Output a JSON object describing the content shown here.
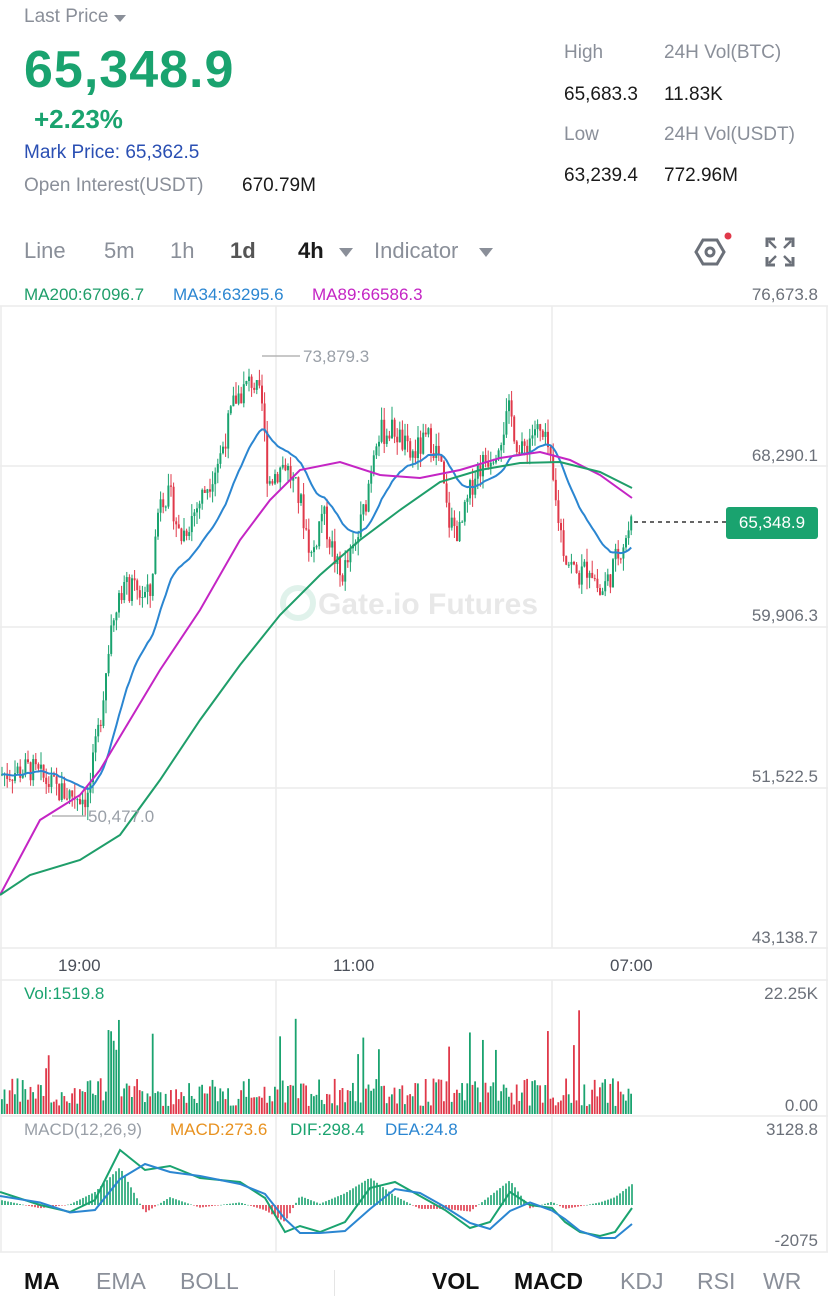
{
  "header": {
    "last_price_label": "Last Price",
    "price": "65,348.9",
    "change": "+2.23%",
    "mark_price": "Mark Price: 65,362.5",
    "open_interest_label": "Open Interest(USDT)",
    "open_interest_value": "670.79M"
  },
  "stats": {
    "high_label": "High",
    "high_value": "65,683.3",
    "low_label": "Low",
    "low_value": "63,239.4",
    "vol_btc_label": "24H Vol(BTC)",
    "vol_btc_value": "11.83K",
    "vol_usdt_label": "24H Vol(USDT)",
    "vol_usdt_value": "772.96M"
  },
  "timeframes": {
    "line": "Line",
    "m5": "5m",
    "h1": "1h",
    "d1": "1d",
    "h4": "4h",
    "indicator": "Indicator"
  },
  "ma_legend": {
    "ma200": "MA200:67096.7",
    "ma34": "MA34:63295.6",
    "ma89": "MA89:66586.3"
  },
  "price_axis": {
    "p1": "76,673.8",
    "p2": "68,290.1",
    "p3": "59,906.3",
    "p4": "51,522.5",
    "p5": "43,138.7"
  },
  "annotations": {
    "high": "73,879.3",
    "low": "50,477.0",
    "current_tag": "65,348.9",
    "watermark": "Gate.io Futures"
  },
  "time_axis": {
    "t1": "19:00",
    "t2": "11:00",
    "t3": "07:00"
  },
  "volume": {
    "label": "Vol:1519.8",
    "max": "22.25K",
    "min": "0.00"
  },
  "macd": {
    "params": "MACD(12,26,9)",
    "macd": "MACD:273.6",
    "dif": "DIF:298.4",
    "dea": "DEA:24.8",
    "max": "3128.8",
    "min": "-2075"
  },
  "bottom_tabs": {
    "ma": "MA",
    "ema": "EMA",
    "boll": "BOLL",
    "vol": "VOL",
    "macd": "MACD",
    "kdj": "KDJ",
    "rsi": "RSI",
    "wr": "WR"
  },
  "colors": {
    "up": "#1aa36f",
    "down": "#e0394a",
    "ma200": "#1f9e6a",
    "ma34": "#2b86d1",
    "ma89": "#c425c4",
    "macd": "#e89220"
  }
}
